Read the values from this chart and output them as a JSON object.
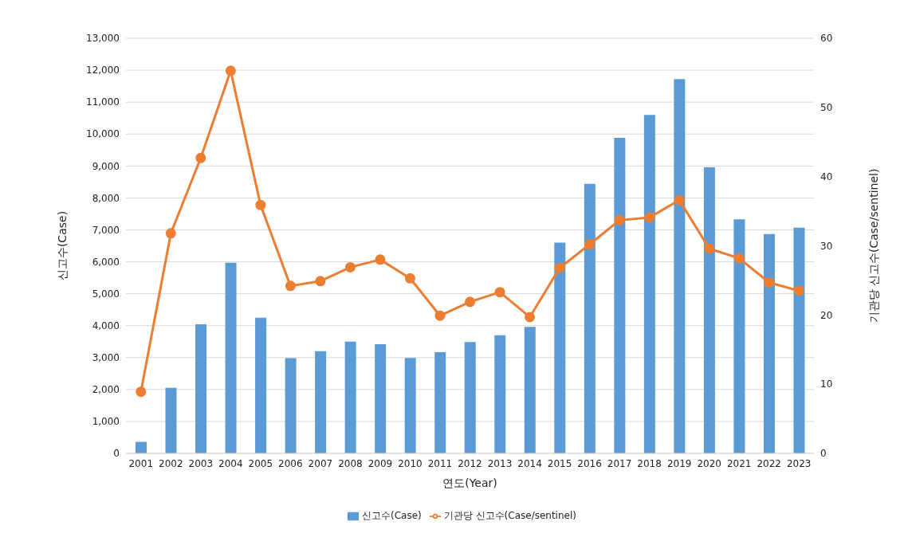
{
  "chart_data": {
    "type": "bar",
    "xlabel": "연도(Year)",
    "ylabel": "신고수(Case)",
    "y2label": "기관당 신고수(Case/sentinel)",
    "categories": [
      "2001",
      "2002",
      "2003",
      "2004",
      "2005",
      "2006",
      "2007",
      "2008",
      "2009",
      "2010",
      "2011",
      "2012",
      "2013",
      "2014",
      "2015",
      "2016",
      "2017",
      "2018",
      "2019",
      "2020",
      "2021",
      "2022",
      "2023"
    ],
    "series": [
      {
        "name": "신고수(Case)",
        "color": "#5b9bd5",
        "values": [
          360,
          2050,
          4040,
          5970,
          4250,
          2980,
          3200,
          3500,
          3420,
          2990,
          3170,
          3490,
          3700,
          3960,
          6600,
          8440,
          9880,
          10600,
          11720,
          8960,
          7330,
          6870,
          7070
        ]
      },
      {
        "name": "기관당 신고수(Case/sentinel)",
        "type": "line",
        "axis": "y2",
        "color": "#ed7d31",
        "marker": "circle",
        "values": [
          8.9,
          31.8,
          42.7,
          55.3,
          35.9,
          24.2,
          24.9,
          26.9,
          28.0,
          25.3,
          19.9,
          21.9,
          23.3,
          19.7,
          26.8,
          30.2,
          33.7,
          34.1,
          36.6,
          29.6,
          28.2,
          24.7,
          23.5
        ]
      }
    ],
    "ylim": [
      0,
      13000
    ],
    "yticks": [
      0,
      {
        "value": 1000,
        "label": "1,000"
      },
      {
        "value": 2000,
        "label": "2,000"
      },
      {
        "value": 3000,
        "label": "3,000"
      },
      {
        "value": 4000,
        "label": "4,000"
      },
      {
        "value": 5000,
        "label": "5,000"
      },
      {
        "value": 6000,
        "label": "6,000"
      },
      {
        "value": 7000,
        "label": "7,000"
      },
      {
        "value": 8000,
        "label": "8,000"
      },
      {
        "value": 9000,
        "label": "9,000"
      },
      {
        "value": 10000,
        "label": "10,000"
      },
      {
        "value": 11000,
        "label": "11,000"
      },
      {
        "value": 12000,
        "label": "12,000"
      },
      {
        "value": 13000,
        "label": "13,000"
      }
    ],
    "y2lim": [
      0,
      60
    ],
    "y2ticks": [
      0,
      10,
      20,
      30,
      40,
      50,
      60
    ],
    "grid": "y",
    "legend": "bottom"
  }
}
